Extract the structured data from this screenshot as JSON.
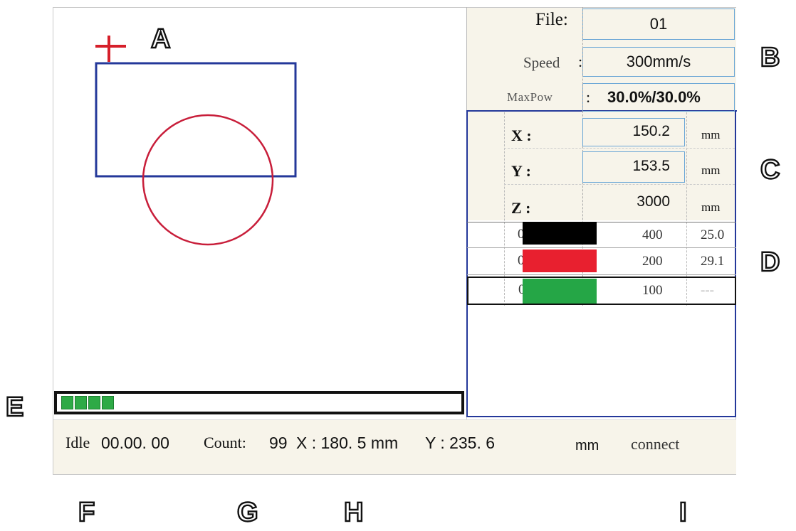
{
  "params": {
    "file_label": "File:",
    "file_value": "01",
    "speed_label": "Speed",
    "speed_colon": ":",
    "speed_value": "300mm/s",
    "maxpow_label": "MaxPow",
    "maxpow_colon": ":",
    "maxpow_value": "30.0%/30.0%"
  },
  "coords": {
    "x_label": "X :",
    "x_value": "150.2",
    "x_unit": "mm",
    "y_label": "Y :",
    "y_value": "153.5",
    "y_unit": "mm",
    "z_label": "Z :",
    "z_value": "3000",
    "z_unit": "mm"
  },
  "layers": [
    {
      "id": "01",
      "color": "#000000",
      "speed": "400",
      "power": "25.0"
    },
    {
      "id": "02",
      "color": "#e8202f",
      "speed": "200",
      "power": "29.1"
    },
    {
      "id": "03",
      "color": "#25a646",
      "speed": "100",
      "power": "---"
    }
  ],
  "progress": {
    "segments": 4,
    "fraction": 0.14
  },
  "status": {
    "state": "Idle",
    "time": "00.00. 00",
    "count_label": "Count:",
    "count_value": "99",
    "x_readout": "X : 180. 5 mm",
    "y_readout": "Y : 235. 6",
    "unit": "mm",
    "connection": "connect"
  },
  "callouts": {
    "a": "A",
    "b": "B",
    "c": "C",
    "d": "D",
    "e": "E",
    "f": "F",
    "g": "G",
    "h": "H",
    "i": "I"
  },
  "colors": {
    "accent_border": "#24389a",
    "field_border": "#6aa6d6",
    "cursor_cross": "#d61f2a",
    "progress_fill": "#2eaa46",
    "panel_bg": "#f7f4ea"
  }
}
